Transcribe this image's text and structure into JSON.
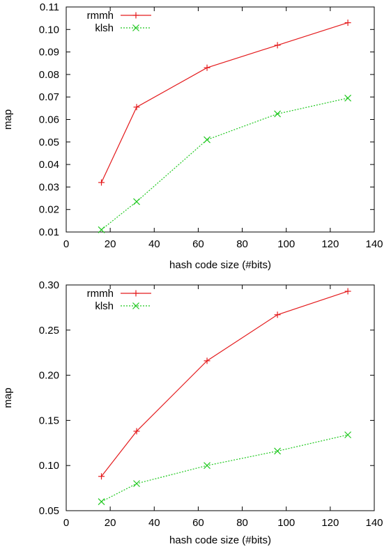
{
  "chart_data": [
    {
      "type": "line",
      "xlabel": "hash code size (#bits)",
      "ylabel": "map",
      "xlim": [
        0,
        140
      ],
      "ylim": [
        0.01,
        0.11
      ],
      "xticks": [
        "0",
        "20",
        "40",
        "60",
        "80",
        "100",
        "120",
        "140"
      ],
      "yticks": [
        "0.01",
        "0.02",
        "0.03",
        "0.04",
        "0.05",
        "0.06",
        "0.07",
        "0.08",
        "0.09",
        "0.10",
        "0.11"
      ],
      "grid": false,
      "legend_position": "top-left",
      "x": [
        16,
        32,
        64,
        96,
        128
      ],
      "series": [
        {
          "name": "rmmh",
          "color": "#e41a1c",
          "marker": "plus",
          "values": [
            0.032,
            0.0655,
            0.083,
            0.093,
            0.103
          ]
        },
        {
          "name": "klsh",
          "color": "#1ec81e",
          "marker": "cross",
          "values": [
            0.011,
            0.0235,
            0.051,
            0.0625,
            0.0695
          ]
        }
      ]
    },
    {
      "type": "line",
      "xlabel": "hash code size (#bits)",
      "ylabel": "map",
      "xlim": [
        0,
        140
      ],
      "ylim": [
        0.05,
        0.3
      ],
      "xticks": [
        "0",
        "20",
        "40",
        "60",
        "80",
        "100",
        "120",
        "140"
      ],
      "yticks": [
        "0.05",
        "0.10",
        "0.15",
        "0.20",
        "0.25",
        "0.30"
      ],
      "grid": false,
      "legend_position": "top-left",
      "x": [
        16,
        32,
        64,
        96,
        128
      ],
      "series": [
        {
          "name": "rmmh",
          "color": "#e41a1c",
          "marker": "plus",
          "values": [
            0.088,
            0.138,
            0.216,
            0.267,
            0.293
          ]
        },
        {
          "name": "klsh",
          "color": "#1ec81e",
          "marker": "cross",
          "values": [
            0.06,
            0.08,
            0.1,
            0.116,
            0.134
          ]
        }
      ]
    }
  ]
}
